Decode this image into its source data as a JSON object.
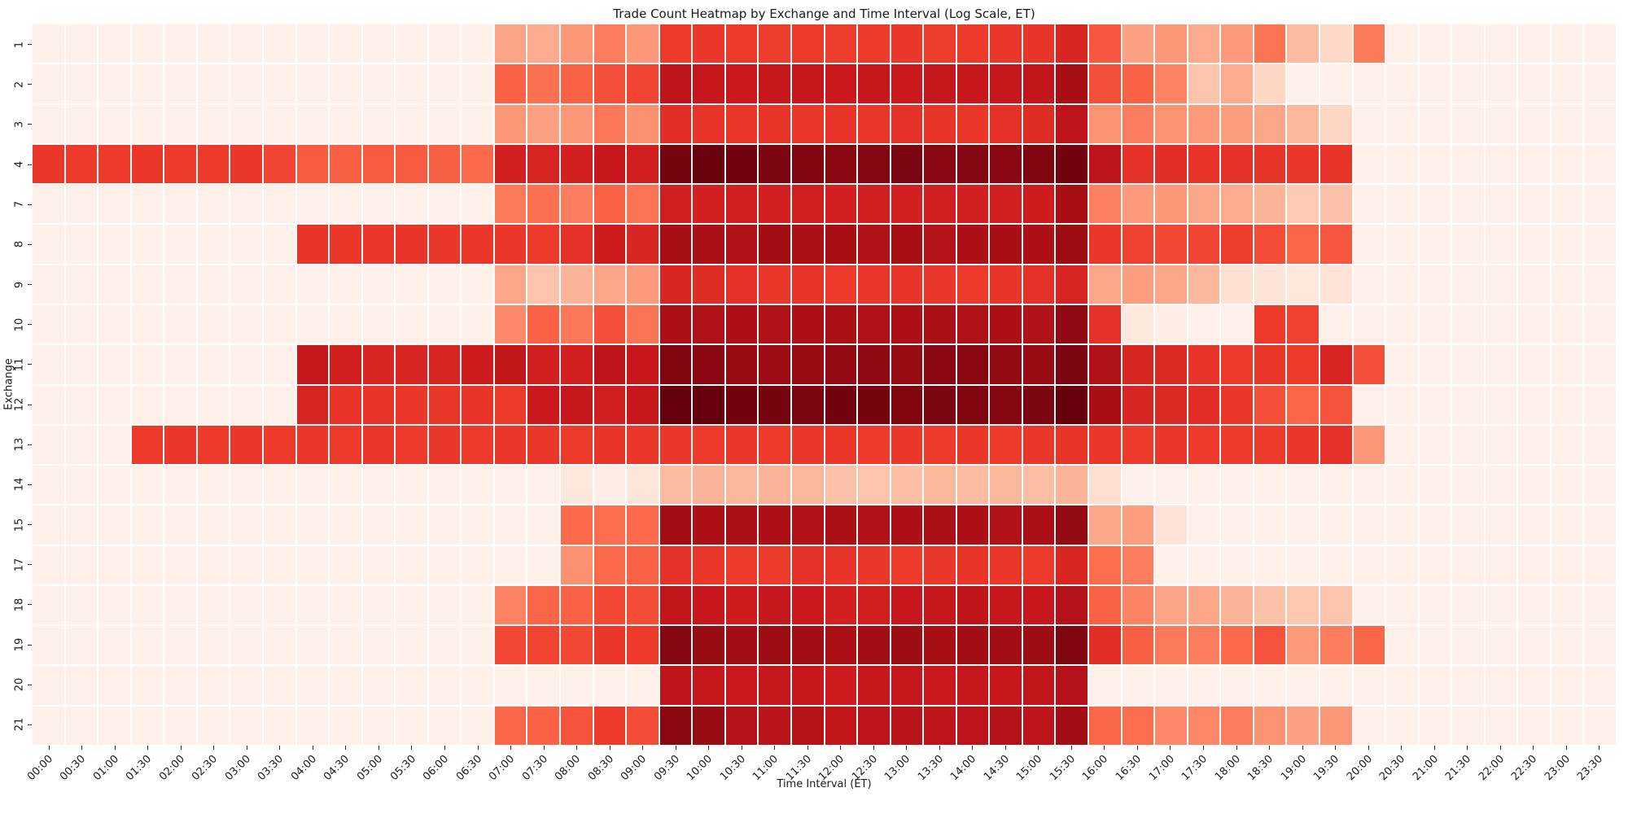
{
  "chart_data": {
    "type": "heatmap",
    "title": "Trade Count Heatmap by Exchange and Time Interval (Log Scale, ET)",
    "xlabel": "Time Interval (ET)",
    "ylabel": "Exchange",
    "x_categories": [
      "00:00",
      "00:30",
      "01:00",
      "01:30",
      "02:00",
      "02:30",
      "03:00",
      "03:30",
      "04:00",
      "04:30",
      "05:00",
      "05:30",
      "06:00",
      "06:30",
      "07:00",
      "07:30",
      "08:00",
      "08:30",
      "09:00",
      "09:30",
      "10:00",
      "10:30",
      "11:00",
      "11:30",
      "12:00",
      "12:30",
      "13:00",
      "13:30",
      "14:00",
      "14:30",
      "15:00",
      "15:30",
      "16:00",
      "16:30",
      "17:00",
      "17:30",
      "18:00",
      "18:30",
      "19:00",
      "19:30",
      "20:00",
      "20:30",
      "21:00",
      "21:30",
      "22:00",
      "22:30",
      "23:00",
      "23:30"
    ],
    "y_categories": [
      "1",
      "2",
      "3",
      "4",
      "7",
      "8",
      "9",
      "10",
      "11",
      "12",
      "13",
      "14",
      "15",
      "17",
      "18",
      "19",
      "20",
      "21"
    ],
    "colormap": {
      "name": "Reds",
      "stops": [
        [
          0.0,
          [
            255,
            245,
            240
          ]
        ],
        [
          0.125,
          [
            254,
            224,
            210
          ]
        ],
        [
          0.25,
          [
            252,
            187,
            161
          ]
        ],
        [
          0.375,
          [
            252,
            146,
            114
          ]
        ],
        [
          0.5,
          [
            251,
            106,
            74
          ]
        ],
        [
          0.625,
          [
            239,
            59,
            44
          ]
        ],
        [
          0.75,
          [
            203,
            24,
            29
          ]
        ],
        [
          0.875,
          [
            165,
            15,
            21
          ]
        ],
        [
          1.0,
          [
            103,
            0,
            13
          ]
        ]
      ]
    },
    "values_normalized_log": [
      [
        0.03,
        0.03,
        0.03,
        0.03,
        0.03,
        0.03,
        0.03,
        0.03,
        0.03,
        0.03,
        0.03,
        0.03,
        0.03,
        0.03,
        0.32,
        0.3,
        0.36,
        0.44,
        0.36,
        0.63,
        0.64,
        0.63,
        0.62,
        0.63,
        0.62,
        0.63,
        0.64,
        0.62,
        0.63,
        0.64,
        0.65,
        0.7,
        0.55,
        0.33,
        0.36,
        0.3,
        0.35,
        0.47,
        0.25,
        0.15,
        0.45,
        0.03,
        0.03,
        0.03,
        0.03,
        0.03,
        0.03,
        0.03
      ],
      [
        0.03,
        0.03,
        0.03,
        0.03,
        0.03,
        0.03,
        0.03,
        0.03,
        0.03,
        0.03,
        0.03,
        0.03,
        0.03,
        0.03,
        0.52,
        0.48,
        0.52,
        0.57,
        0.6,
        0.79,
        0.76,
        0.75,
        0.76,
        0.77,
        0.75,
        0.76,
        0.75,
        0.77,
        0.76,
        0.77,
        0.78,
        0.87,
        0.57,
        0.52,
        0.42,
        0.22,
        0.3,
        0.16,
        0.03,
        0.03,
        0.03,
        0.03,
        0.03,
        0.03,
        0.03,
        0.03,
        0.03,
        0.03
      ],
      [
        0.03,
        0.03,
        0.03,
        0.03,
        0.03,
        0.03,
        0.03,
        0.03,
        0.03,
        0.03,
        0.03,
        0.03,
        0.03,
        0.03,
        0.36,
        0.33,
        0.36,
        0.46,
        0.38,
        0.67,
        0.65,
        0.64,
        0.65,
        0.64,
        0.65,
        0.64,
        0.66,
        0.65,
        0.64,
        0.66,
        0.68,
        0.8,
        0.37,
        0.44,
        0.37,
        0.35,
        0.34,
        0.31,
        0.26,
        0.16,
        0.03,
        0.03,
        0.03,
        0.03,
        0.03,
        0.03,
        0.03,
        0.03
      ],
      [
        0.64,
        0.63,
        0.63,
        0.64,
        0.63,
        0.63,
        0.64,
        0.6,
        0.54,
        0.53,
        0.54,
        0.54,
        0.53,
        0.5,
        0.72,
        0.71,
        0.72,
        0.76,
        0.73,
        0.97,
        0.99,
        0.98,
        0.96,
        0.95,
        0.93,
        0.94,
        0.96,
        0.93,
        0.94,
        0.93,
        0.95,
        0.98,
        0.8,
        0.66,
        0.67,
        0.65,
        0.66,
        0.65,
        0.64,
        0.65,
        0.03,
        0.03,
        0.03,
        0.03,
        0.03,
        0.03,
        0.03,
        0.03
      ],
      [
        0.03,
        0.03,
        0.03,
        0.03,
        0.03,
        0.03,
        0.03,
        0.03,
        0.03,
        0.03,
        0.03,
        0.03,
        0.03,
        0.03,
        0.45,
        0.48,
        0.44,
        0.52,
        0.47,
        0.73,
        0.72,
        0.73,
        0.72,
        0.73,
        0.72,
        0.73,
        0.72,
        0.73,
        0.72,
        0.73,
        0.74,
        0.87,
        0.43,
        0.35,
        0.36,
        0.31,
        0.3,
        0.27,
        0.2,
        0.23,
        0.03,
        0.03,
        0.03,
        0.03,
        0.03,
        0.03,
        0.03,
        0.03
      ],
      [
        0.03,
        0.03,
        0.03,
        0.03,
        0.03,
        0.03,
        0.03,
        0.03,
        0.65,
        0.64,
        0.64,
        0.65,
        0.64,
        0.64,
        0.64,
        0.63,
        0.66,
        0.74,
        0.7,
        0.87,
        0.86,
        0.84,
        0.88,
        0.86,
        0.87,
        0.84,
        0.87,
        0.83,
        0.85,
        0.87,
        0.85,
        0.89,
        0.64,
        0.61,
        0.59,
        0.6,
        0.62,
        0.58,
        0.51,
        0.55,
        0.03,
        0.03,
        0.03,
        0.03,
        0.03,
        0.03,
        0.03,
        0.03
      ],
      [
        0.03,
        0.03,
        0.03,
        0.03,
        0.03,
        0.03,
        0.03,
        0.03,
        0.03,
        0.03,
        0.03,
        0.03,
        0.03,
        0.03,
        0.31,
        0.22,
        0.27,
        0.31,
        0.35,
        0.7,
        0.68,
        0.66,
        0.64,
        0.65,
        0.63,
        0.64,
        0.65,
        0.64,
        0.63,
        0.65,
        0.66,
        0.71,
        0.31,
        0.34,
        0.31,
        0.26,
        0.12,
        0.1,
        0.08,
        0.11,
        0.03,
        0.03,
        0.03,
        0.03,
        0.03,
        0.03,
        0.03,
        0.03
      ],
      [
        0.03,
        0.03,
        0.03,
        0.03,
        0.03,
        0.03,
        0.03,
        0.03,
        0.03,
        0.03,
        0.03,
        0.03,
        0.03,
        0.03,
        0.4,
        0.52,
        0.46,
        0.57,
        0.47,
        0.85,
        0.84,
        0.85,
        0.84,
        0.85,
        0.86,
        0.84,
        0.85,
        0.86,
        0.84,
        0.85,
        0.84,
        0.92,
        0.66,
        0.07,
        0.04,
        0.03,
        0.03,
        0.63,
        0.61,
        0.03,
        0.03,
        0.03,
        0.03,
        0.03,
        0.03,
        0.03,
        0.03,
        0.03
      ],
      [
        0.03,
        0.03,
        0.03,
        0.03,
        0.03,
        0.03,
        0.03,
        0.03,
        0.77,
        0.73,
        0.7,
        0.7,
        0.7,
        0.74,
        0.78,
        0.72,
        0.72,
        0.8,
        0.76,
        0.95,
        0.93,
        0.9,
        0.89,
        0.9,
        0.91,
        0.92,
        0.9,
        0.93,
        0.93,
        0.91,
        0.9,
        0.96,
        0.84,
        0.7,
        0.69,
        0.65,
        0.63,
        0.64,
        0.63,
        0.71,
        0.57,
        0.03,
        0.03,
        0.03,
        0.03,
        0.03,
        0.03,
        0.03
      ],
      [
        0.03,
        0.03,
        0.03,
        0.03,
        0.03,
        0.03,
        0.03,
        0.03,
        0.71,
        0.65,
        0.65,
        0.64,
        0.64,
        0.65,
        0.63,
        0.75,
        0.77,
        0.73,
        0.76,
        1.0,
        1.0,
        0.98,
        0.97,
        0.96,
        0.98,
        0.97,
        0.95,
        0.96,
        0.95,
        0.94,
        0.96,
        1.0,
        0.87,
        0.7,
        0.69,
        0.67,
        0.64,
        0.57,
        0.51,
        0.56,
        0.03,
        0.03,
        0.03,
        0.03,
        0.03,
        0.03,
        0.03,
        0.03
      ],
      [
        0.03,
        0.03,
        0.03,
        0.63,
        0.64,
        0.63,
        0.64,
        0.63,
        0.64,
        0.63,
        0.64,
        0.63,
        0.64,
        0.63,
        0.64,
        0.64,
        0.63,
        0.65,
        0.64,
        0.64,
        0.63,
        0.64,
        0.63,
        0.64,
        0.64,
        0.63,
        0.64,
        0.63,
        0.64,
        0.63,
        0.64,
        0.65,
        0.64,
        0.63,
        0.64,
        0.63,
        0.63,
        0.63,
        0.64,
        0.66,
        0.36,
        0.03,
        0.03,
        0.03,
        0.03,
        0.03,
        0.03,
        0.03
      ],
      [
        0.03,
        0.03,
        0.03,
        0.03,
        0.03,
        0.03,
        0.03,
        0.03,
        0.03,
        0.03,
        0.03,
        0.03,
        0.03,
        0.03,
        0.03,
        0.03,
        0.08,
        0.04,
        0.09,
        0.25,
        0.27,
        0.26,
        0.27,
        0.26,
        0.23,
        0.22,
        0.24,
        0.26,
        0.25,
        0.26,
        0.24,
        0.27,
        0.13,
        0.03,
        0.03,
        0.03,
        0.03,
        0.03,
        0.03,
        0.03,
        0.03,
        0.03,
        0.03,
        0.03,
        0.03,
        0.03,
        0.03,
        0.03
      ],
      [
        0.03,
        0.03,
        0.03,
        0.03,
        0.03,
        0.03,
        0.03,
        0.03,
        0.03,
        0.03,
        0.03,
        0.03,
        0.03,
        0.03,
        0.03,
        0.03,
        0.5,
        0.49,
        0.5,
        0.88,
        0.85,
        0.86,
        0.85,
        0.84,
        0.86,
        0.84,
        0.85,
        0.86,
        0.85,
        0.84,
        0.86,
        0.91,
        0.31,
        0.34,
        0.1,
        0.03,
        0.03,
        0.03,
        0.03,
        0.03,
        0.03,
        0.03,
        0.03,
        0.03,
        0.03,
        0.03,
        0.03,
        0.03
      ],
      [
        0.03,
        0.03,
        0.03,
        0.03,
        0.03,
        0.03,
        0.03,
        0.03,
        0.03,
        0.03,
        0.03,
        0.03,
        0.03,
        0.03,
        0.03,
        0.03,
        0.38,
        0.5,
        0.52,
        0.66,
        0.64,
        0.63,
        0.63,
        0.66,
        0.65,
        0.64,
        0.63,
        0.64,
        0.65,
        0.64,
        0.63,
        0.7,
        0.49,
        0.44,
        0.03,
        0.03,
        0.03,
        0.03,
        0.03,
        0.03,
        0.03,
        0.03,
        0.03,
        0.03,
        0.03,
        0.03,
        0.03,
        0.03
      ],
      [
        0.03,
        0.03,
        0.03,
        0.03,
        0.03,
        0.03,
        0.03,
        0.03,
        0.03,
        0.03,
        0.03,
        0.03,
        0.03,
        0.03,
        0.42,
        0.51,
        0.52,
        0.59,
        0.58,
        0.78,
        0.76,
        0.74,
        0.77,
        0.75,
        0.72,
        0.73,
        0.76,
        0.77,
        0.79,
        0.77,
        0.76,
        0.83,
        0.52,
        0.42,
        0.32,
        0.31,
        0.27,
        0.23,
        0.21,
        0.22,
        0.03,
        0.03,
        0.03,
        0.03,
        0.03,
        0.03,
        0.03,
        0.03
      ],
      [
        0.03,
        0.03,
        0.03,
        0.03,
        0.03,
        0.03,
        0.03,
        0.03,
        0.03,
        0.03,
        0.03,
        0.03,
        0.03,
        0.03,
        0.59,
        0.6,
        0.59,
        0.64,
        0.63,
        0.94,
        0.9,
        0.88,
        0.89,
        0.88,
        0.86,
        0.88,
        0.89,
        0.87,
        0.88,
        0.88,
        0.89,
        0.95,
        0.67,
        0.53,
        0.45,
        0.44,
        0.5,
        0.56,
        0.35,
        0.44,
        0.51,
        0.03,
        0.03,
        0.03,
        0.03,
        0.03,
        0.03,
        0.03
      ],
      [
        0.03,
        0.03,
        0.03,
        0.03,
        0.03,
        0.03,
        0.03,
        0.03,
        0.03,
        0.03,
        0.03,
        0.03,
        0.03,
        0.03,
        0.03,
        0.03,
        0.03,
        0.03,
        0.03,
        0.79,
        0.77,
        0.75,
        0.77,
        0.76,
        0.74,
        0.76,
        0.77,
        0.75,
        0.77,
        0.76,
        0.78,
        0.83,
        0.03,
        0.03,
        0.03,
        0.03,
        0.03,
        0.03,
        0.03,
        0.03,
        0.03,
        0.03,
        0.03,
        0.03,
        0.03,
        0.03,
        0.03,
        0.03
      ],
      [
        0.03,
        0.03,
        0.03,
        0.03,
        0.03,
        0.03,
        0.03,
        0.03,
        0.03,
        0.03,
        0.03,
        0.03,
        0.03,
        0.03,
        0.51,
        0.52,
        0.56,
        0.63,
        0.58,
        0.93,
        0.9,
        0.83,
        0.81,
        0.82,
        0.78,
        0.8,
        0.81,
        0.79,
        0.8,
        0.83,
        0.8,
        0.88,
        0.51,
        0.49,
        0.4,
        0.41,
        0.44,
        0.37,
        0.33,
        0.36,
        0.03,
        0.03,
        0.03,
        0.03,
        0.03,
        0.03,
        0.03,
        0.03
      ]
    ]
  }
}
